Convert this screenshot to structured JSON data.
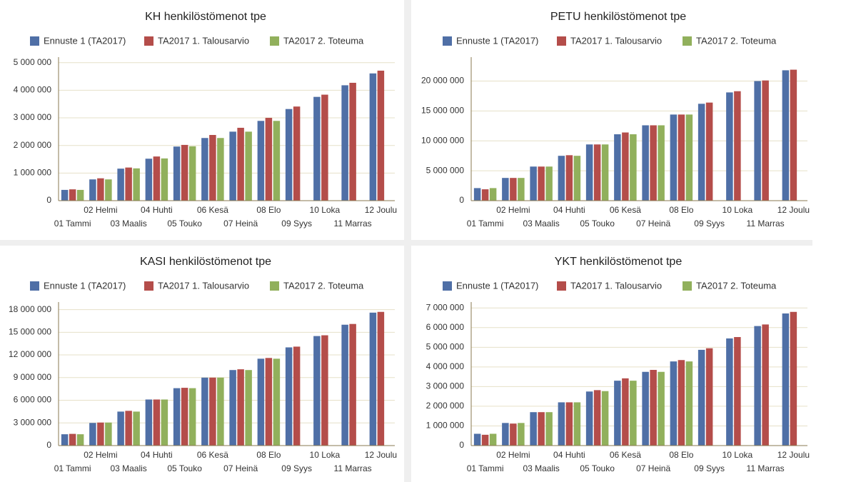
{
  "chart_data": [
    {
      "type": "bar",
      "title": "KH henkilöstömenot tpe",
      "categories": [
        "01 Tammi",
        "02 Helmi",
        "03 Maalis",
        "04 Huhti",
        "05 Touko",
        "06 Kesä",
        "07 Heinä",
        "08 Elo",
        "09 Syys",
        "10 Loka",
        "11 Marras",
        "12 Joulu"
      ],
      "series": [
        {
          "name": "Ennuste 1 (TA2017)",
          "color": "#4f6fa6",
          "values": [
            390000,
            770000,
            1160000,
            1520000,
            1960000,
            2270000,
            2500000,
            2890000,
            3320000,
            3760000,
            4180000,
            4610000
          ]
        },
        {
          "name": "TA2017 1. Talousarvio",
          "color": "#b44d4a",
          "values": [
            410000,
            810000,
            1200000,
            1600000,
            2020000,
            2380000,
            2640000,
            3000000,
            3410000,
            3840000,
            4270000,
            4710000
          ]
        },
        {
          "name": "TA2017 2. Toteuma",
          "color": "#91b05c",
          "values": [
            390000,
            770000,
            1170000,
            1530000,
            1970000,
            2270000,
            2500000,
            2890000,
            null,
            null,
            null,
            null
          ]
        }
      ],
      "ylim": [
        0,
        5200000
      ],
      "yticks": [
        0,
        {
          "value": 1000000,
          "label": "1 000 000"
        },
        {
          "value": 2000000,
          "label": "2 000 000"
        },
        {
          "value": 3000000,
          "label": "3 000 000"
        },
        {
          "value": 4000000,
          "label": "4 000 000"
        },
        {
          "value": 5000000,
          "label": "5 000 000"
        }
      ],
      "grid": true
    },
    {
      "type": "bar",
      "title": "PETU henkilöstömenot tpe",
      "categories": [
        "01 Tammi",
        "02 Helmi",
        "03 Maalis",
        "04 Huhti",
        "05 Touko",
        "06 Kesä",
        "07 Heinä",
        "08 Elo",
        "09 Syys",
        "10 Loka",
        "11 Marras",
        "12 Joulu"
      ],
      "series": [
        {
          "name": "Ennuste 1 (TA2017)",
          "color": "#4f6fa6",
          "values": [
            2100000,
            3800000,
            5700000,
            7500000,
            9400000,
            11100000,
            12600000,
            14400000,
            16200000,
            18100000,
            20000000,
            21800000
          ]
        },
        {
          "name": "TA2017 1. Talousarvio",
          "color": "#b44d4a",
          "values": [
            1900000,
            3800000,
            5700000,
            7600000,
            9400000,
            11400000,
            12600000,
            14400000,
            16400000,
            18300000,
            20100000,
            21900000
          ]
        },
        {
          "name": "TA2017 2. Toteuma",
          "color": "#91b05c",
          "values": [
            2100000,
            3800000,
            5700000,
            7500000,
            9400000,
            11100000,
            12600000,
            14400000,
            null,
            null,
            null,
            null
          ]
        }
      ],
      "ylim": [
        0,
        24000000
      ],
      "yticks": [
        0,
        {
          "value": 5000000,
          "label": "5 000 000"
        },
        {
          "value": 10000000,
          "label": "10 000 000"
        },
        {
          "value": 15000000,
          "label": "15 000 000"
        },
        {
          "value": 20000000,
          "label": "20 000 000"
        }
      ],
      "grid": true
    },
    {
      "type": "bar",
      "title": "KASI henkilöstömenot tpe",
      "categories": [
        "01 Tammi",
        "02 Helmi",
        "03 Maalis",
        "04 Huhti",
        "05 Touko",
        "06 Kesä",
        "07 Heinä",
        "08 Elo",
        "09 Syys",
        "10 Loka",
        "11 Marras",
        "12 Joulu"
      ],
      "series": [
        {
          "name": "Ennuste 1 (TA2017)",
          "color": "#4f6fa6",
          "values": [
            1500000,
            3000000,
            4500000,
            6100000,
            7600000,
            9000000,
            10000000,
            11500000,
            13000000,
            14500000,
            16000000,
            17600000
          ]
        },
        {
          "name": "TA2017 1. Talousarvio",
          "color": "#b44d4a",
          "values": [
            1550000,
            3050000,
            4600000,
            6100000,
            7650000,
            9000000,
            10100000,
            11600000,
            13100000,
            14600000,
            16100000,
            17700000
          ]
        },
        {
          "name": "TA2017 2. Toteuma",
          "color": "#91b05c",
          "values": [
            1500000,
            3050000,
            4500000,
            6100000,
            7600000,
            9000000,
            10000000,
            11500000,
            null,
            null,
            null,
            null
          ]
        }
      ],
      "ylim": [
        0,
        19000000
      ],
      "yticks": [
        0,
        {
          "value": 3000000,
          "label": "3 000 000"
        },
        {
          "value": 6000000,
          "label": "6 000 000"
        },
        {
          "value": 9000000,
          "label": "9 000 000"
        },
        {
          "value": 12000000,
          "label": "12 000 000"
        },
        {
          "value": 15000000,
          "label": "15 000 000"
        },
        {
          "value": 18000000,
          "label": "18 000 000"
        }
      ],
      "grid": true
    },
    {
      "type": "bar",
      "title": "YKT henkilöstömenot tpe",
      "categories": [
        "01 Tammi",
        "02 Helmi",
        "03 Maalis",
        "04 Huhti",
        "05 Touko",
        "06 Kesä",
        "07 Heinä",
        "08 Elo",
        "09 Syys",
        "10 Loka",
        "11 Marras",
        "12 Joulu"
      ],
      "series": [
        {
          "name": "Ennuste 1 (TA2017)",
          "color": "#4f6fa6",
          "values": [
            600000,
            1150000,
            1700000,
            2200000,
            2750000,
            3300000,
            3750000,
            4280000,
            4870000,
            5450000,
            6080000,
            6720000
          ]
        },
        {
          "name": "TA2017 1. Talousarvio",
          "color": "#b44d4a",
          "values": [
            550000,
            1120000,
            1700000,
            2200000,
            2820000,
            3420000,
            3850000,
            4350000,
            4950000,
            5520000,
            6160000,
            6800000
          ]
        },
        {
          "name": "TA2017 2. Toteuma",
          "color": "#91b05c",
          "values": [
            600000,
            1150000,
            1700000,
            2200000,
            2770000,
            3300000,
            3750000,
            4280000,
            null,
            null,
            null,
            null
          ]
        }
      ],
      "ylim": [
        0,
        7300000
      ],
      "yticks": [
        0,
        {
          "value": 1000000,
          "label": "1 000 000"
        },
        {
          "value": 2000000,
          "label": "2 000 000"
        },
        {
          "value": 3000000,
          "label": "3 000 000"
        },
        {
          "value": 4000000,
          "label": "4 000 000"
        },
        {
          "value": 5000000,
          "label": "5 000 000"
        },
        {
          "value": 6000000,
          "label": "6 000 000"
        },
        {
          "value": 7000000,
          "label": "7 000 000"
        }
      ],
      "grid": true
    }
  ]
}
